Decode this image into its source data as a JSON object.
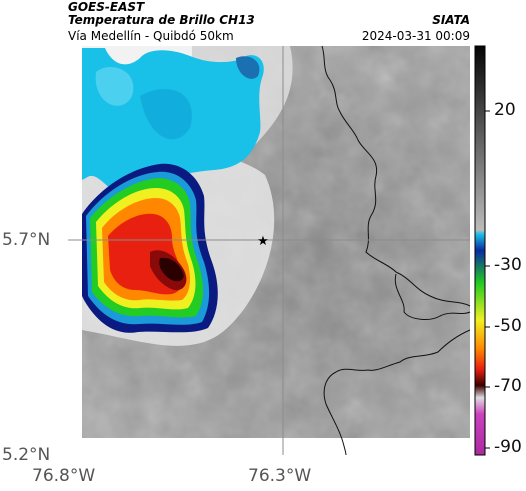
{
  "header": {
    "satellite": "GOES-EAST",
    "product": "Temperatura de Brillo CH13",
    "org": "SIATA",
    "route": "Vía Medellín - Quibdó 50km",
    "datetime": "2024-03-31 00:09"
  },
  "axes": {
    "lat_ticks": [
      "5.7°N",
      "5.2°N"
    ],
    "lon_ticks": [
      "76.8°W",
      "76.3°W"
    ]
  },
  "colorbar": {
    "labels": [
      "20",
      "-30",
      "-50",
      "-70",
      "-90"
    ],
    "colors": {
      "cyan": "#19c0e8",
      "green": "#22cc22",
      "yellow": "#f0f020",
      "orange": "#ff8800",
      "red": "#e82010",
      "darkred": "#3a0000",
      "magenta": "#cc40c0",
      "navy": "#0a1a80"
    }
  },
  "marker": {
    "icon": "star-icon"
  }
}
